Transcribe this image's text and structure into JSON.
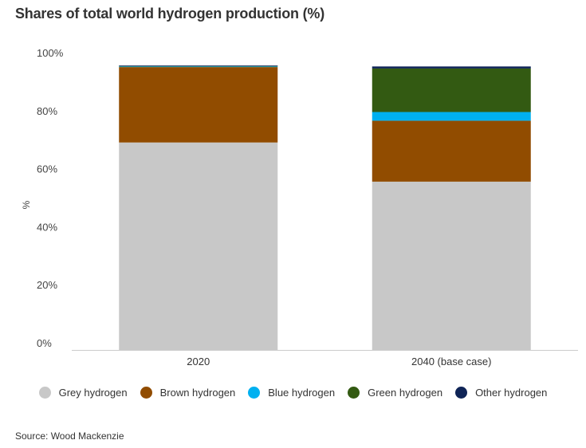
{
  "chart_data": {
    "type": "bar",
    "stacked": true,
    "title": "Shares of total world hydrogen production (%)",
    "xlabel": "",
    "ylabel": "%",
    "ylim": [
      0,
      100
    ],
    "yticks": [
      "0%",
      "20%",
      "40%",
      "60%",
      "80%",
      "100%"
    ],
    "categories": [
      "2020",
      "2040 (base case)"
    ],
    "series": [
      {
        "name": "Grey hydrogen",
        "color": "#c8c8c8",
        "values": [
          71.5,
          58
        ]
      },
      {
        "name": "Brown hydrogen",
        "color": "#914c00",
        "values": [
          26,
          21
        ]
      },
      {
        "name": "Blue hydrogen",
        "color": "#00b0f0",
        "values": [
          0.2,
          3
        ]
      },
      {
        "name": "Green hydrogen",
        "color": "#335a12",
        "values": [
          0.1,
          15
        ]
      },
      {
        "name": "Other hydrogen",
        "color": "#0f2456",
        "values": [
          0.2,
          0.7
        ]
      }
    ],
    "grid": false,
    "legend_position": "bottom"
  },
  "source": "Source: Wood Mackenzie"
}
